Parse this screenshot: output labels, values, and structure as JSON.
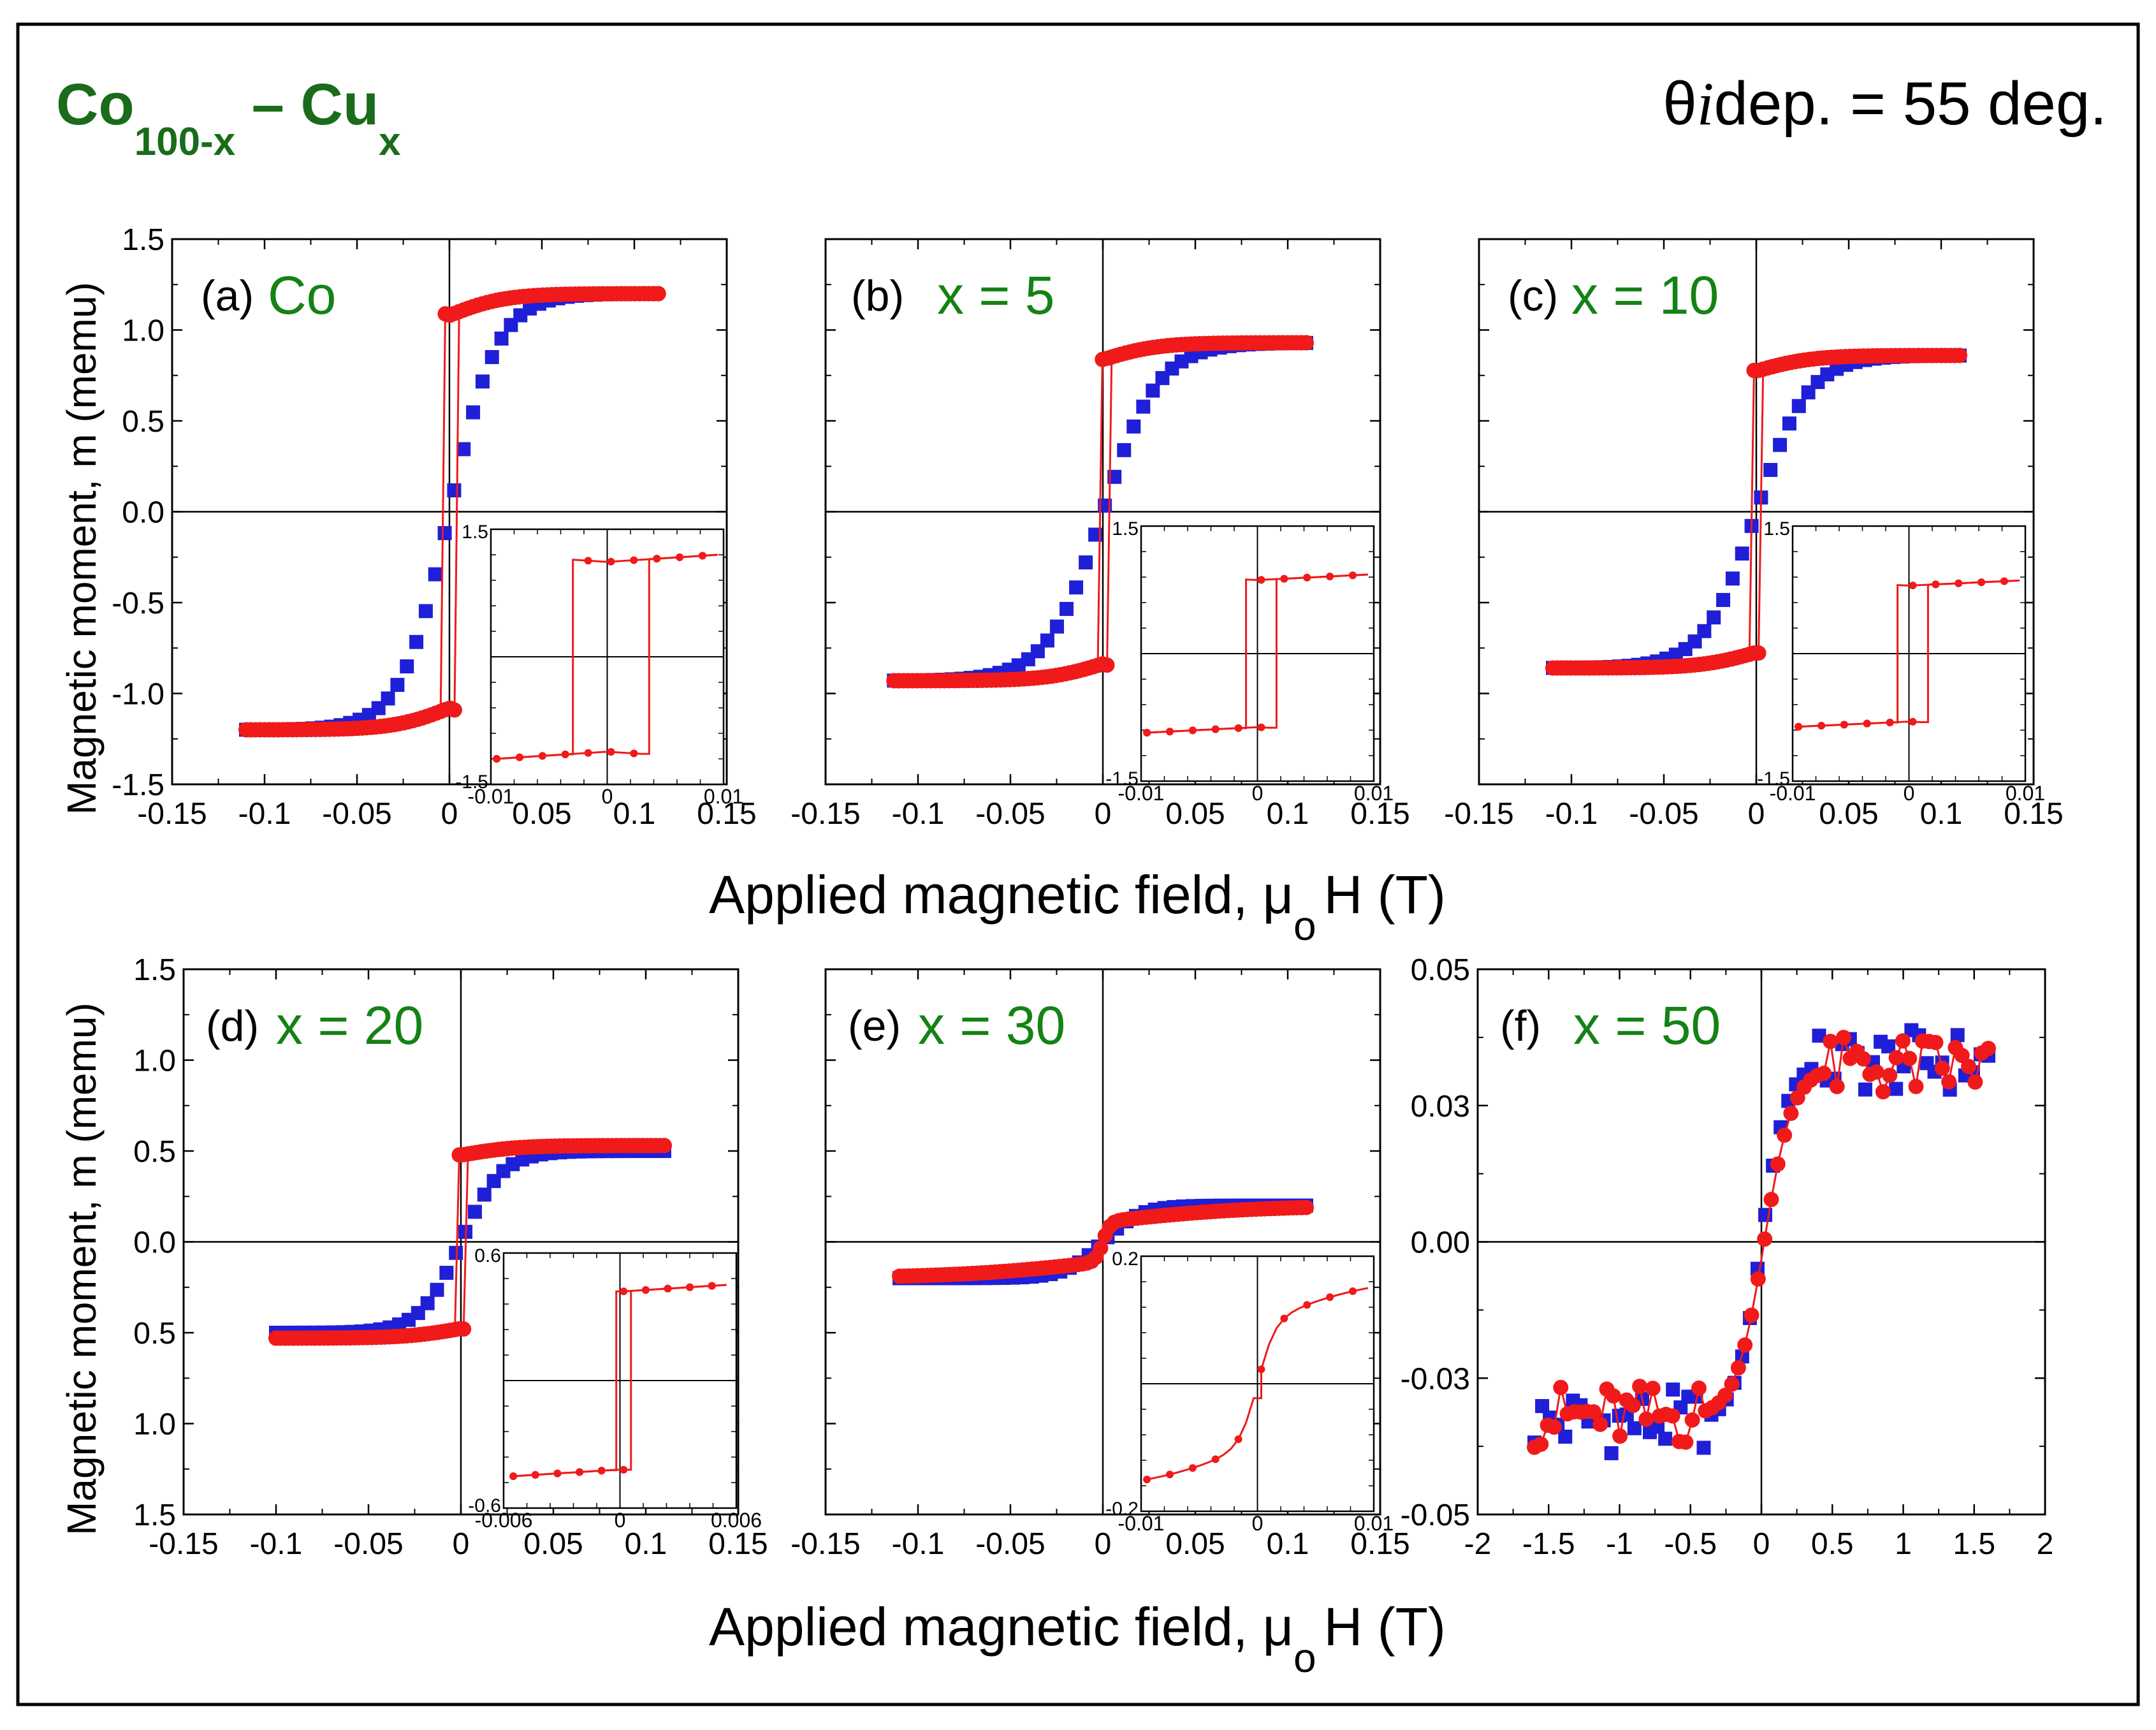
{
  "figure": {
    "title_main": "Co",
    "title_sub1": "100-x",
    "title_dash": " – Cu",
    "title_sub2": "x",
    "angle_symbol": "θ",
    "angle_italic": "i",
    "angle_text": "dep. = 55 deg.",
    "ylabel": "Magnetic moment, m (memu)",
    "xlabel_main": "Applied magnetic field, μ",
    "xlabel_sub": "o",
    "xlabel_end": "H (T)",
    "title_color": "#1a6b1a",
    "label_color": "#148214",
    "colors": {
      "blue": "#1f1fd8",
      "red": "#f01a1a"
    }
  },
  "chart_data": [
    {
      "type": "scatter",
      "id": "a",
      "panel_label": "(a)",
      "sample_label": "Co",
      "xlim": [
        -0.15,
        0.15
      ],
      "ylim": [
        -1.5,
        1.5
      ],
      "xticks": [
        "-0.15",
        "-0.1",
        "-0.05",
        "0",
        "0.05",
        "0.1",
        "0.15"
      ],
      "yticks": [
        "-1.5",
        "-1.0",
        "-0.5",
        "0.0",
        "0.5",
        "1.0",
        "1.5"
      ],
      "show_yticklabels": true,
      "series": [
        {
          "name": "blue",
          "ms": 1.2,
          "xc": 0.0,
          "w": 0.026,
          "x0": -0.11,
          "x1": 0.11,
          "n": 44
        },
        {
          "name": "red",
          "ms": 1.2,
          "hc": 0.003,
          "x0": -0.11,
          "x1": 0.113,
          "n": 90
        }
      ],
      "inset": {
        "xlim": [
          -0.01,
          0.01
        ],
        "ylim": [
          -1.5,
          1.5
        ],
        "xticks": [
          "-0.01",
          "0",
          "0.01"
        ],
        "yticks": [
          "-1.5",
          "1.5"
        ],
        "ms": 1.2,
        "hc": 0.0035,
        "x0": -0.0095,
        "x1": 0.0095
      }
    },
    {
      "type": "scatter",
      "id": "b",
      "panel_label": "(b)",
      "sample_label": "x = 5",
      "xlim": [
        -0.15,
        0.15
      ],
      "ylim": [
        -1.5,
        1.5
      ],
      "xticks": [
        "-0.15",
        "-0.1",
        "-0.05",
        "0",
        "0.05",
        "0.1",
        "0.15"
      ],
      "yticks": [
        "-1.5",
        "-1.0",
        "-0.5",
        "0.0",
        "0.5",
        "1.0",
        "1.5"
      ],
      "show_yticklabels": false,
      "series": [
        {
          "name": "blue",
          "ms": 0.93,
          "xc": 0.0,
          "w": 0.03,
          "x0": -0.113,
          "x1": 0.11,
          "n": 44
        },
        {
          "name": "red",
          "ms": 0.93,
          "hc": 0.0025,
          "x0": -0.113,
          "x1": 0.11,
          "n": 90
        }
      ],
      "inset": {
        "xlim": [
          -0.01,
          0.01
        ],
        "ylim": [
          -1.5,
          1.5
        ],
        "xticks": [
          "-0.01",
          "0",
          "0.01"
        ],
        "yticks": [
          "-1.5",
          "1.5"
        ],
        "ms": 0.93,
        "hc": 0.0012,
        "x0": -0.0095,
        "x1": 0.0095
      }
    },
    {
      "type": "scatter",
      "id": "c",
      "panel_label": "(c)",
      "sample_label": "x = 10",
      "xlim": [
        -0.15,
        0.15
      ],
      "ylim": [
        -1.5,
        1.5
      ],
      "xticks": [
        "-0.15",
        "-0.1",
        "-0.05",
        "0",
        "0.05",
        "0.1",
        "0.15"
      ],
      "yticks": [
        "-1.5",
        "-1.0",
        "-0.5",
        "0.0",
        "0.5",
        "1.0",
        "1.5"
      ],
      "show_yticklabels": false,
      "series": [
        {
          "name": "blue",
          "ms": 0.86,
          "xc": 0.0,
          "w": 0.028,
          "x0": -0.11,
          "x1": 0.11,
          "n": 44
        },
        {
          "name": "red",
          "ms": 0.86,
          "hc": 0.002,
          "x0": -0.11,
          "x1": 0.11,
          "n": 90
        }
      ],
      "inset": {
        "xlim": [
          -0.01,
          0.01
        ],
        "ylim": [
          -1.5,
          1.5
        ],
        "xticks": [
          "-0.01",
          "0",
          "0.01"
        ],
        "yticks": [
          "-1.5",
          "1.5"
        ],
        "ms": 0.86,
        "hc": 0.001,
        "x0": -0.0095,
        "x1": 0.0095
      }
    },
    {
      "type": "scatter",
      "id": "d",
      "panel_label": "(d)",
      "sample_label": "x = 20",
      "xlim": [
        -0.15,
        0.15
      ],
      "ylim": [
        -1.5,
        1.5
      ],
      "xticks": [
        "-0.15",
        "-0.1",
        "-0.05",
        "0",
        "0.05",
        "0.1",
        "0.15"
      ],
      "yticks": [
        "1.5",
        "1.0",
        "0.5",
        "0.0",
        "0.5",
        "1.0",
        "1.5"
      ],
      "show_yticklabels": true,
      "series": [
        {
          "name": "blue",
          "ms": 0.5,
          "xc": 0.0,
          "w": 0.022,
          "x0": -0.1,
          "x1": 0.11,
          "n": 42
        },
        {
          "name": "red",
          "ms": 0.53,
          "hc": 0.002,
          "x0": -0.1,
          "x1": 0.11,
          "n": 90
        }
      ],
      "inset": {
        "xlim": [
          -0.006,
          0.006
        ],
        "ylim": [
          -0.6,
          0.6
        ],
        "xticks": [
          "-0.006",
          "0",
          "0.006"
        ],
        "yticks": [
          "-0.6",
          "0.6"
        ],
        "ms": 0.45,
        "hc": 0.0004,
        "x0": -0.0055,
        "x1": 0.0055
      }
    },
    {
      "type": "scatter",
      "id": "e",
      "panel_label": "(e)",
      "sample_label": "x = 30",
      "xlim": [
        -0.15,
        0.15
      ],
      "ylim": [
        -1.5,
        1.5
      ],
      "xticks": [
        "-0.15",
        "-0.1",
        "-0.05",
        "0",
        "0.05",
        "0.1",
        "0.15"
      ],
      "yticks": [
        "-1.5",
        "-1.0",
        "-0.5",
        "0.0",
        "0.5",
        "1.0",
        "1.5"
      ],
      "show_yticklabels": false,
      "series": [
        {
          "name": "blue",
          "ms": 0.2,
          "xc": 0.0,
          "w": 0.02,
          "x0": -0.11,
          "x1": 0.11,
          "n": 44
        },
        {
          "name": "red",
          "ms": 0.2,
          "hc": 0.0,
          "x0": -0.11,
          "x1": 0.11,
          "n": 90
        }
      ],
      "inset": {
        "xlim": [
          -0.01,
          0.01
        ],
        "ylim": [
          -0.2,
          0.2
        ],
        "xticks": [
          "-0.01",
          "0",
          "0.01"
        ],
        "yticks": [
          "-0.2",
          "0.2"
        ],
        "ms": 0.17,
        "hc": 0.0,
        "x0": -0.0095,
        "x1": 0.0095
      }
    },
    {
      "type": "scatter",
      "id": "f",
      "panel_label": "(f)",
      "sample_label": "x = 50",
      "xlim": [
        -2,
        2
      ],
      "ylim": [
        -0.05,
        0.05
      ],
      "xticks": [
        "-2",
        "-1.5",
        "-1",
        "-0.5",
        "0",
        "0.5",
        "1",
        "1.5",
        "2"
      ],
      "yticks": [
        "-0.05",
        "-0.03",
        "0.00",
        "0.03",
        "0.05"
      ],
      "show_yticklabels": true,
      "series": [
        {
          "name": "blue",
          "ms": 0.033,
          "xc": 0.0,
          "w": 0.18,
          "x0": -1.6,
          "x1": 1.6,
          "n": 60
        },
        {
          "name": "red",
          "ms": 0.032,
          "xc": 0.02,
          "w": 0.2,
          "x0": -1.6,
          "x1": 1.6,
          "n": 70
        }
      ]
    }
  ]
}
